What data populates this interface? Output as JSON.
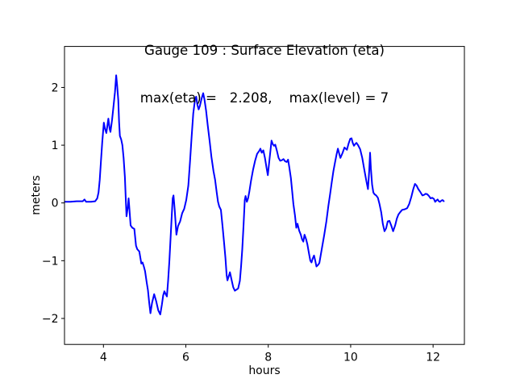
{
  "chart_data": {
    "type": "line",
    "title_line1": "Gauge 109 : Surface Elevation (eta)",
    "title_line2": "max(eta) =   2.208,    max(level) = 7",
    "xlabel": "hours",
    "ylabel": "meters",
    "xlim": [
      3.055,
      12.76
    ],
    "ylim": [
      -2.45,
      2.71
    ],
    "x_ticks": [
      4,
      6,
      8,
      10,
      12
    ],
    "x_tick_labels": [
      "4",
      "6",
      "8",
      "10",
      "12"
    ],
    "y_ticks": [
      -2,
      -1,
      0,
      1,
      2
    ],
    "y_tick_labels": [
      "−2",
      "−1",
      "0",
      "1",
      "2"
    ],
    "grid": false,
    "legend": null,
    "annotations": {
      "max_eta": 2.208,
      "max_level": 7
    },
    "series": [
      {
        "name": "eta",
        "color": "#0000ff",
        "line_width": 2,
        "points": [
          [
            3.06,
            0.02
          ],
          [
            3.2,
            0.02
          ],
          [
            3.35,
            0.03
          ],
          [
            3.5,
            0.03
          ],
          [
            3.54,
            0.06
          ],
          [
            3.58,
            0.02
          ],
          [
            3.7,
            0.02
          ],
          [
            3.8,
            0.03
          ],
          [
            3.85,
            0.08
          ],
          [
            3.88,
            0.18
          ],
          [
            3.91,
            0.4
          ],
          [
            3.94,
            0.72
          ],
          [
            3.97,
            1.05
          ],
          [
            4.01,
            1.39
          ],
          [
            4.04,
            1.28
          ],
          [
            4.07,
            1.21
          ],
          [
            4.1,
            1.36
          ],
          [
            4.12,
            1.46
          ],
          [
            4.15,
            1.28
          ],
          [
            4.17,
            1.23
          ],
          [
            4.21,
            1.44
          ],
          [
            4.24,
            1.65
          ],
          [
            4.28,
            1.92
          ],
          [
            4.31,
            2.21
          ],
          [
            4.33,
            2.05
          ],
          [
            4.36,
            1.78
          ],
          [
            4.38,
            1.4
          ],
          [
            4.4,
            1.16
          ],
          [
            4.43,
            1.1
          ],
          [
            4.46,
            1.0
          ],
          [
            4.49,
            0.78
          ],
          [
            4.52,
            0.45
          ],
          [
            4.54,
            0.1
          ],
          [
            4.56,
            -0.23
          ],
          [
            4.59,
            -0.08
          ],
          [
            4.61,
            0.08
          ],
          [
            4.63,
            -0.1
          ],
          [
            4.66,
            -0.39
          ],
          [
            4.7,
            -0.43
          ],
          [
            4.75,
            -0.45
          ],
          [
            4.79,
            -0.74
          ],
          [
            4.82,
            -0.8
          ],
          [
            4.87,
            -0.84
          ],
          [
            4.92,
            -1.05
          ],
          [
            4.95,
            -1.03
          ],
          [
            4.98,
            -1.1
          ],
          [
            5.01,
            -1.18
          ],
          [
            5.05,
            -1.38
          ],
          [
            5.08,
            -1.51
          ],
          [
            5.11,
            -1.72
          ],
          [
            5.14,
            -1.91
          ],
          [
            5.18,
            -1.73
          ],
          [
            5.23,
            -1.58
          ],
          [
            5.28,
            -1.7
          ],
          [
            5.33,
            -1.86
          ],
          [
            5.38,
            -1.93
          ],
          [
            5.42,
            -1.75
          ],
          [
            5.45,
            -1.6
          ],
          [
            5.48,
            -1.53
          ],
          [
            5.51,
            -1.58
          ],
          [
            5.54,
            -1.62
          ],
          [
            5.57,
            -1.35
          ],
          [
            5.6,
            -1.0
          ],
          [
            5.63,
            -0.6
          ],
          [
            5.66,
            -0.2
          ],
          [
            5.68,
            0.08
          ],
          [
            5.7,
            0.13
          ],
          [
            5.73,
            -0.12
          ],
          [
            5.77,
            -0.55
          ],
          [
            5.81,
            -0.4
          ],
          [
            5.86,
            -0.32
          ],
          [
            5.91,
            -0.18
          ],
          [
            5.96,
            -0.1
          ],
          [
            6.01,
            0.05
          ],
          [
            6.06,
            0.3
          ],
          [
            6.1,
            0.7
          ],
          [
            6.14,
            1.15
          ],
          [
            6.18,
            1.55
          ],
          [
            6.22,
            1.78
          ],
          [
            6.25,
            1.84
          ],
          [
            6.28,
            1.7
          ],
          [
            6.31,
            1.62
          ],
          [
            6.34,
            1.68
          ],
          [
            6.38,
            1.8
          ],
          [
            6.42,
            1.9
          ],
          [
            6.45,
            1.8
          ],
          [
            6.49,
            1.6
          ],
          [
            6.53,
            1.35
          ],
          [
            6.58,
            1.05
          ],
          [
            6.62,
            0.8
          ],
          [
            6.67,
            0.55
          ],
          [
            6.71,
            0.4
          ],
          [
            6.75,
            0.18
          ],
          [
            6.78,
            0.02
          ],
          [
            6.81,
            -0.06
          ],
          [
            6.85,
            -0.12
          ],
          [
            6.89,
            -0.4
          ],
          [
            6.93,
            -0.7
          ],
          [
            6.96,
            -0.95
          ],
          [
            6.99,
            -1.25
          ],
          [
            7.01,
            -1.34
          ],
          [
            7.04,
            -1.27
          ],
          [
            7.07,
            -1.2
          ],
          [
            7.11,
            -1.33
          ],
          [
            7.15,
            -1.46
          ],
          [
            7.19,
            -1.52
          ],
          [
            7.23,
            -1.5
          ],
          [
            7.27,
            -1.48
          ],
          [
            7.31,
            -1.35
          ],
          [
            7.34,
            -1.1
          ],
          [
            7.37,
            -0.8
          ],
          [
            7.4,
            -0.38
          ],
          [
            7.43,
            0.05
          ],
          [
            7.45,
            0.12
          ],
          [
            7.48,
            0.02
          ],
          [
            7.51,
            0.08
          ],
          [
            7.54,
            0.19
          ],
          [
            7.58,
            0.38
          ],
          [
            7.63,
            0.57
          ],
          [
            7.68,
            0.73
          ],
          [
            7.73,
            0.85
          ],
          [
            7.78,
            0.9
          ],
          [
            7.81,
            0.94
          ],
          [
            7.84,
            0.87
          ],
          [
            7.88,
            0.91
          ],
          [
            7.92,
            0.78
          ],
          [
            7.96,
            0.6
          ],
          [
            7.99,
            0.48
          ],
          [
            8.03,
            0.76
          ],
          [
            8.08,
            1.08
          ],
          [
            8.11,
            1.02
          ],
          [
            8.14,
            0.99
          ],
          [
            8.17,
            1.01
          ],
          [
            8.21,
            0.9
          ],
          [
            8.25,
            0.78
          ],
          [
            8.29,
            0.73
          ],
          [
            8.33,
            0.74
          ],
          [
            8.37,
            0.76
          ],
          [
            8.41,
            0.72
          ],
          [
            8.45,
            0.71
          ],
          [
            8.48,
            0.75
          ],
          [
            8.51,
            0.62
          ],
          [
            8.55,
            0.43
          ],
          [
            8.58,
            0.2
          ],
          [
            8.61,
            -0.02
          ],
          [
            8.65,
            -0.22
          ],
          [
            8.68,
            -0.43
          ],
          [
            8.71,
            -0.36
          ],
          [
            8.75,
            -0.48
          ],
          [
            8.79,
            -0.55
          ],
          [
            8.82,
            -0.63
          ],
          [
            8.85,
            -0.67
          ],
          [
            8.88,
            -0.55
          ],
          [
            8.92,
            -0.63
          ],
          [
            8.95,
            -0.72
          ],
          [
            8.99,
            -0.88
          ],
          [
            9.02,
            -1.0
          ],
          [
            9.05,
            -1.03
          ],
          [
            9.08,
            -0.96
          ],
          [
            9.11,
            -0.91
          ],
          [
            9.14,
            -1.0
          ],
          [
            9.17,
            -1.1
          ],
          [
            9.21,
            -1.07
          ],
          [
            9.24,
            -1.04
          ],
          [
            9.28,
            -0.88
          ],
          [
            9.31,
            -0.75
          ],
          [
            9.36,
            -0.55
          ],
          [
            9.41,
            -0.32
          ],
          [
            9.46,
            -0.05
          ],
          [
            9.5,
            0.15
          ],
          [
            9.54,
            0.35
          ],
          [
            9.58,
            0.55
          ],
          [
            9.62,
            0.7
          ],
          [
            9.66,
            0.85
          ],
          [
            9.69,
            0.94
          ],
          [
            9.72,
            0.86
          ],
          [
            9.75,
            0.78
          ],
          [
            9.8,
            0.86
          ],
          [
            9.85,
            0.96
          ],
          [
            9.88,
            0.94
          ],
          [
            9.91,
            0.92
          ],
          [
            9.95,
            1.03
          ],
          [
            9.99,
            1.11
          ],
          [
            10.02,
            1.12
          ],
          [
            10.05,
            1.04
          ],
          [
            10.08,
            0.99
          ],
          [
            10.11,
            1.02
          ],
          [
            10.14,
            1.04
          ],
          [
            10.18,
            1.0
          ],
          [
            10.23,
            0.93
          ],
          [
            10.28,
            0.78
          ],
          [
            10.33,
            0.58
          ],
          [
            10.38,
            0.38
          ],
          [
            10.42,
            0.24
          ],
          [
            10.45,
            0.55
          ],
          [
            10.47,
            0.87
          ],
          [
            10.49,
            0.6
          ],
          [
            10.52,
            0.32
          ],
          [
            10.55,
            0.18
          ],
          [
            10.58,
            0.15
          ],
          [
            10.62,
            0.13
          ],
          [
            10.66,
            0.09
          ],
          [
            10.7,
            -0.02
          ],
          [
            10.74,
            -0.16
          ],
          [
            10.78,
            -0.36
          ],
          [
            10.82,
            -0.49
          ],
          [
            10.86,
            -0.44
          ],
          [
            10.9,
            -0.32
          ],
          [
            10.94,
            -0.31
          ],
          [
            10.99,
            -0.4
          ],
          [
            11.03,
            -0.49
          ],
          [
            11.08,
            -0.39
          ],
          [
            11.12,
            -0.27
          ],
          [
            11.16,
            -0.2
          ],
          [
            11.2,
            -0.16
          ],
          [
            11.25,
            -0.12
          ],
          [
            11.31,
            -0.11
          ],
          [
            11.37,
            -0.09
          ],
          [
            11.42,
            -0.02
          ],
          [
            11.47,
            0.1
          ],
          [
            11.52,
            0.24
          ],
          [
            11.56,
            0.33
          ],
          [
            11.6,
            0.3
          ],
          [
            11.64,
            0.24
          ],
          [
            11.69,
            0.19
          ],
          [
            11.74,
            0.13
          ],
          [
            11.78,
            0.14
          ],
          [
            11.82,
            0.16
          ],
          [
            11.86,
            0.15
          ],
          [
            11.9,
            0.12
          ],
          [
            11.94,
            0.08
          ],
          [
            11.98,
            0.09
          ],
          [
            12.02,
            0.07
          ],
          [
            12.05,
            0.02
          ],
          [
            12.08,
            0.04
          ],
          [
            12.11,
            0.06
          ],
          [
            12.14,
            0.03
          ],
          [
            12.17,
            0.02
          ],
          [
            12.2,
            0.04
          ],
          [
            12.23,
            0.05
          ],
          [
            12.26,
            0.03
          ]
        ]
      }
    ],
    "colors": {
      "line": "#0000ff",
      "text": "#000000",
      "spine": "#000000",
      "background": "#ffffff"
    }
  }
}
